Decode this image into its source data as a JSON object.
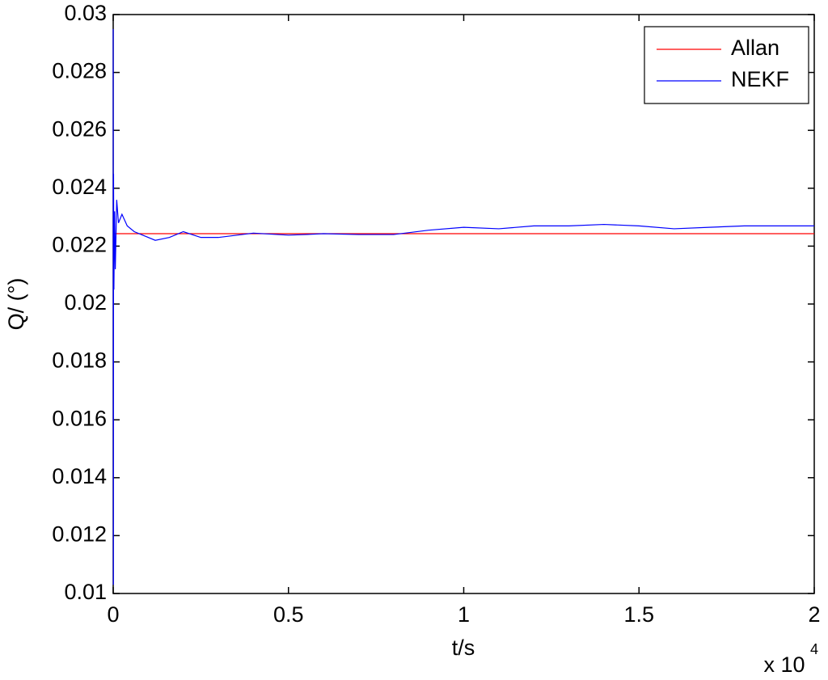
{
  "chart_data": {
    "type": "line",
    "x_label": "t/s",
    "y_label": "Q/ (°)",
    "x_multiplier": "x 10",
    "x_multiplier_exponent": "4",
    "xlim": [
      0,
      2
    ],
    "xticks": [
      0,
      0.5,
      1,
      1.5,
      2
    ],
    "ylim": [
      0.01,
      0.03
    ],
    "yticks": [
      0.01,
      0.012,
      0.014,
      0.016,
      0.018,
      0.02,
      0.022,
      0.024,
      0.026,
      0.028,
      0.03
    ],
    "grid": false,
    "legend_position": "upper-right",
    "series": [
      {
        "name": "Allan",
        "color": "#ff0000",
        "x": [
          0,
          2
        ],
        "values": [
          0.02243,
          0.02243
        ]
      },
      {
        "name": "NEKF",
        "color": "#0000ff",
        "x": [
          0,
          0.0005,
          0.001,
          0.002,
          0.004,
          0.006,
          0.01,
          0.015,
          0.025,
          0.04,
          0.06,
          0.08,
          0.12,
          0.16,
          0.2,
          0.25,
          0.3,
          0.4,
          0.5,
          0.55,
          0.6,
          0.7,
          0.8,
          0.9,
          1.0,
          1.1,
          1.2,
          1.3,
          1.4,
          1.5,
          1.6,
          1.7,
          1.8,
          1.9,
          2.0
        ],
        "values": [
          0.0295,
          0.0103,
          0.0245,
          0.0205,
          0.0232,
          0.0212,
          0.0236,
          0.0228,
          0.0231,
          0.0227,
          0.0225,
          0.0224,
          0.0222,
          0.0223,
          0.0225,
          0.0223,
          0.0223,
          0.02245,
          0.02238,
          0.0224,
          0.02243,
          0.0224,
          0.0224,
          0.02255,
          0.02265,
          0.0226,
          0.0227,
          0.0227,
          0.02275,
          0.0227,
          0.0226,
          0.02265,
          0.0227,
          0.0227,
          0.0227
        ]
      }
    ]
  }
}
